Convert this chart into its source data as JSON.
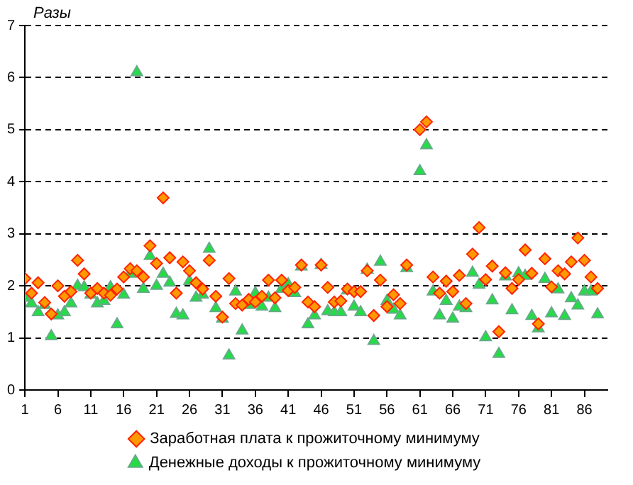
{
  "chart_data": {
    "type": "scatter",
    "ylabel": "Разы",
    "x": [
      1,
      2,
      3,
      4,
      5,
      6,
      7,
      8,
      9,
      10,
      11,
      12,
      13,
      14,
      15,
      16,
      17,
      18,
      19,
      20,
      21,
      22,
      23,
      24,
      25,
      26,
      27,
      28,
      29,
      30,
      31,
      32,
      33,
      34,
      35,
      36,
      37,
      38,
      39,
      40,
      41,
      42,
      43,
      44,
      45,
      46,
      47,
      48,
      49,
      50,
      51,
      52,
      53,
      54,
      55,
      56,
      57,
      58,
      59,
      60,
      61,
      62,
      63,
      64,
      65,
      66,
      67,
      68,
      69,
      70,
      71,
      72,
      73,
      74,
      75,
      76,
      77,
      78,
      79,
      80,
      81,
      82,
      83,
      84,
      85,
      86,
      87,
      88
    ],
    "series": [
      {
        "name": "Заработная плата к прожиточному минимуму",
        "color": "#ff9900",
        "marker": "diamond",
        "values": [
          2.14,
          1.86,
          2.06,
          1.68,
          1.46,
          2.0,
          1.8,
          1.89,
          2.49,
          2.23,
          1.86,
          1.95,
          1.86,
          1.82,
          1.94,
          2.17,
          2.33,
          2.29,
          2.17,
          2.77,
          2.43,
          3.69,
          2.54,
          1.86,
          2.46,
          2.29,
          2.06,
          1.94,
          2.49,
          1.8,
          1.4,
          2.14,
          1.66,
          1.63,
          1.74,
          1.69,
          1.8,
          2.11,
          1.77,
          2.11,
          1.91,
          1.97,
          2.4,
          1.69,
          1.6,
          2.4,
          1.97,
          1.69,
          1.71,
          1.94,
          1.89,
          1.89,
          2.29,
          1.43,
          2.11,
          1.6,
          1.83,
          1.66,
          2.4,
          null,
          5.0,
          5.15,
          2.17,
          1.86,
          2.09,
          1.89,
          2.2,
          1.66,
          2.61,
          3.12,
          2.12,
          2.38,
          1.12,
          2.25,
          1.95,
          2.12,
          2.69,
          2.24,
          1.27,
          2.52,
          1.98,
          2.29,
          2.23,
          2.46,
          2.92,
          2.49,
          2.17,
          1.95
        ]
      },
      {
        "name": "Денежные доходы к прожиточному минимуму",
        "color": "#22dd44",
        "marker": "triangle",
        "values": [
          1.77,
          1.66,
          1.49,
          1.63,
          1.03,
          1.43,
          1.49,
          1.66,
          2.0,
          1.97,
          1.83,
          1.66,
          1.71,
          1.97,
          1.26,
          1.83,
          2.23,
          6.1,
          1.94,
          2.57,
          2.0,
          2.23,
          2.06,
          1.46,
          1.43,
          2.09,
          1.77,
          1.83,
          2.71,
          1.57,
          1.37,
          0.66,
          1.89,
          1.14,
          1.63,
          1.86,
          1.6,
          1.77,
          1.57,
          1.94,
          2.03,
          1.86,
          2.37,
          1.26,
          1.43,
          2.4,
          1.51,
          1.49,
          1.49,
          1.91,
          1.6,
          1.49,
          2.31,
          0.94,
          2.46,
          1.71,
          1.54,
          1.43,
          2.34,
          null,
          4.2,
          4.7,
          1.89,
          1.43,
          1.71,
          1.37,
          1.6,
          1.57,
          2.25,
          2.02,
          1.01,
          1.72,
          0.69,
          2.18,
          1.53,
          2.24,
          2.19,
          1.42,
          1.18,
          2.13,
          1.47,
          1.93,
          1.42,
          1.76,
          1.62,
          1.89,
          1.89,
          1.45
        ]
      }
    ],
    "xlim": [
      1,
      89.5
    ],
    "xticks": [
      1,
      6,
      11,
      16,
      21,
      26,
      31,
      36,
      41,
      46,
      51,
      56,
      61,
      66,
      71,
      76,
      81,
      86
    ],
    "ylim": [
      0,
      7
    ],
    "yticks": [
      0,
      1,
      2,
      3,
      4,
      5,
      6,
      7
    ],
    "grid": "y",
    "legend": "bottom"
  }
}
